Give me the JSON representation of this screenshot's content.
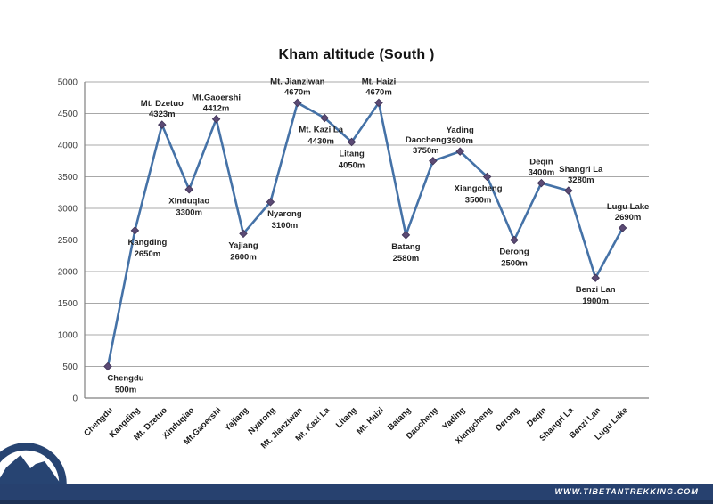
{
  "title": "Kham altitude (South )",
  "footer": {
    "url_label": "WWW.TIBETANTREKKING.COM",
    "bar_color": "#27416f"
  },
  "logo": {
    "name": "tibetan-trekking-mountain-logo",
    "color": "#274472"
  },
  "chart_data": {
    "type": "line",
    "title": "Kham altitude (South )",
    "categories": [
      "Chengdu",
      "Kangding",
      "Mt. Dzetuo",
      "Xinduqiao",
      "Mt.Gaoershi",
      "Yajiang",
      "Nyarong",
      "Mt. Jianziwan",
      "Mt. Kazi La",
      "Litang",
      "Mt. Haizi",
      "Batang",
      "Daocheng",
      "Yading",
      "Xiangcheng",
      "Derong",
      "Deqin",
      "Shangri La",
      "Benzi Lan",
      "Lugu Lake"
    ],
    "values": [
      500,
      2650,
      4323,
      3300,
      4412,
      2600,
      3100,
      4670,
      4430,
      4050,
      4670,
      2580,
      3750,
      3900,
      3500,
      2500,
      3400,
      3280,
      1900,
      2690
    ],
    "unit": "m",
    "xlabel": "",
    "ylabel": "",
    "ylim": [
      0,
      5000
    ],
    "ytick_step": 500,
    "grid": true,
    "legend": "none",
    "line_color": "#4572A7",
    "marker_color": "#5B4A74",
    "marker_edge_color": "#3f3355",
    "grid_color": "#a8a8a8",
    "axis_color": "#808080",
    "label_layout": [
      {
        "pos": "below",
        "dx": 20
      },
      {
        "pos": "below",
        "dx": 14
      },
      {
        "pos": "above",
        "dx": 0
      },
      {
        "pos": "below",
        "dx": 0
      },
      {
        "pos": "above",
        "dx": 0
      },
      {
        "pos": "below",
        "dx": 0
      },
      {
        "pos": "below",
        "dx": 16
      },
      {
        "pos": "above",
        "dx": 0
      },
      {
        "pos": "below",
        "dx": -4
      },
      {
        "pos": "below",
        "dx": 0
      },
      {
        "pos": "above",
        "dx": 0
      },
      {
        "pos": "below",
        "dx": 0
      },
      {
        "pos": "above",
        "dx": -8
      },
      {
        "pos": "above",
        "dx": 0
      },
      {
        "pos": "below",
        "dx": -10
      },
      {
        "pos": "below",
        "dx": 0
      },
      {
        "pos": "above",
        "dx": 0
      },
      {
        "pos": "above",
        "dx": 14
      },
      {
        "pos": "below",
        "dx": 0
      },
      {
        "pos": "above",
        "dx": 6
      }
    ]
  }
}
